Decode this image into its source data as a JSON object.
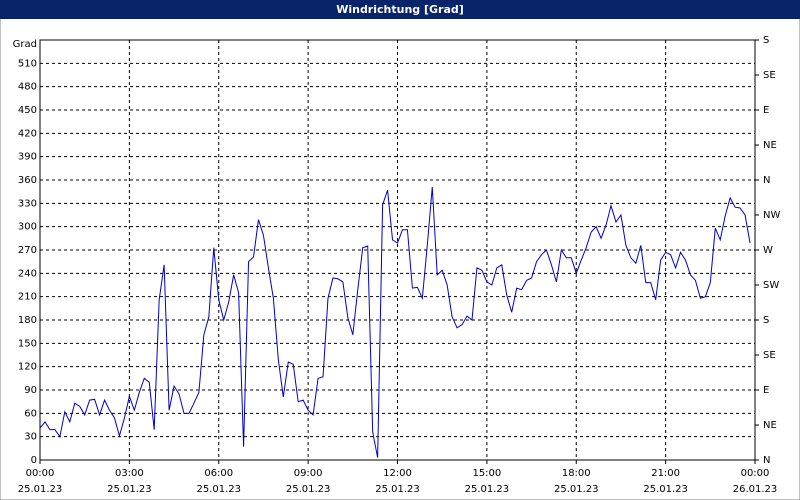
{
  "chart_data": {
    "type": "line",
    "title": "Windrichtung [Grad]",
    "y_label": "Grad",
    "grid": true,
    "color": "#0000cc",
    "xlim": [
      "2023-01-25T00:00",
      "2023-01-26T00:00"
    ],
    "xticks": [
      {
        "value": "2023-01-25T00:00",
        "label": "00:00",
        "date": "25.01.23"
      },
      {
        "value": "2023-01-25T03:00",
        "label": "03:00",
        "date": "25.01.23"
      },
      {
        "value": "2023-01-25T06:00",
        "label": "06:00",
        "date": "25.01.23"
      },
      {
        "value": "2023-01-25T09:00",
        "label": "09:00",
        "date": "25.01.23"
      },
      {
        "value": "2023-01-25T12:00",
        "label": "12:00",
        "date": "25.01.23"
      },
      {
        "value": "2023-01-25T15:00",
        "label": "15:00",
        "date": "25.01.23"
      },
      {
        "value": "2023-01-25T18:00",
        "label": "18:00",
        "date": "25.01.23"
      },
      {
        "value": "2023-01-25T21:00",
        "label": "21:00",
        "date": "25.01.23"
      },
      {
        "value": "2023-01-26T00:00",
        "label": "00:00",
        "date": "26.01.23"
      }
    ],
    "ylim": [
      0,
      540
    ],
    "yticks": [
      0,
      30,
      60,
      90,
      120,
      150,
      180,
      210,
      240,
      270,
      300,
      330,
      360,
      390,
      420,
      450,
      480,
      510
    ],
    "y2lim": [
      0,
      540
    ],
    "y2ticks": [
      {
        "value": 0,
        "label": "N"
      },
      {
        "value": 45,
        "label": "NE"
      },
      {
        "value": 90,
        "label": "E"
      },
      {
        "value": 135,
        "label": "SE"
      },
      {
        "value": 180,
        "label": "S"
      },
      {
        "value": 225,
        "label": "SW"
      },
      {
        "value": 270,
        "label": "W"
      },
      {
        "value": 315,
        "label": "NW"
      },
      {
        "value": 360,
        "label": "N"
      },
      {
        "value": 405,
        "label": "NE"
      },
      {
        "value": 450,
        "label": "E"
      },
      {
        "value": 495,
        "label": "SE"
      },
      {
        "value": 540,
        "label": "S"
      }
    ],
    "x": [
      "2023-01-25T00:00",
      "2023-01-25T00:10",
      "2023-01-25T00:20",
      "2023-01-25T00:30",
      "2023-01-25T00:40",
      "2023-01-25T00:50",
      "2023-01-25T01:00",
      "2023-01-25T01:10",
      "2023-01-25T01:20",
      "2023-01-25T01:30",
      "2023-01-25T01:40",
      "2023-01-25T01:50",
      "2023-01-25T02:00",
      "2023-01-25T02:10",
      "2023-01-25T02:20",
      "2023-01-25T02:30",
      "2023-01-25T02:40",
      "2023-01-25T02:50",
      "2023-01-25T03:00",
      "2023-01-25T03:10",
      "2023-01-25T03:20",
      "2023-01-25T03:30",
      "2023-01-25T03:40",
      "2023-01-25T03:50",
      "2023-01-25T04:00",
      "2023-01-25T04:10",
      "2023-01-25T04:20",
      "2023-01-25T04:30",
      "2023-01-25T04:40",
      "2023-01-25T04:50",
      "2023-01-25T05:00",
      "2023-01-25T05:10",
      "2023-01-25T05:20",
      "2023-01-25T05:30",
      "2023-01-25T05:40",
      "2023-01-25T05:50",
      "2023-01-25T06:00",
      "2023-01-25T06:10",
      "2023-01-25T06:20",
      "2023-01-25T06:30",
      "2023-01-25T06:40",
      "2023-01-25T06:50",
      "2023-01-25T07:00",
      "2023-01-25T07:10",
      "2023-01-25T07:20",
      "2023-01-25T07:30",
      "2023-01-25T07:40",
      "2023-01-25T07:50",
      "2023-01-25T08:00",
      "2023-01-25T08:10",
      "2023-01-25T08:20",
      "2023-01-25T08:30",
      "2023-01-25T08:40",
      "2023-01-25T08:50",
      "2023-01-25T09:00",
      "2023-01-25T09:10",
      "2023-01-25T09:20",
      "2023-01-25T09:30",
      "2023-01-25T09:40",
      "2023-01-25T09:50",
      "2023-01-25T10:00",
      "2023-01-25T10:10",
      "2023-01-25T10:20",
      "2023-01-25T10:30",
      "2023-01-25T10:40",
      "2023-01-25T10:50",
      "2023-01-25T11:00",
      "2023-01-25T11:10",
      "2023-01-25T11:20",
      "2023-01-25T11:30",
      "2023-01-25T11:40",
      "2023-01-25T11:50",
      "2023-01-25T12:00",
      "2023-01-25T12:10",
      "2023-01-25T12:20",
      "2023-01-25T12:30",
      "2023-01-25T12:40",
      "2023-01-25T12:50",
      "2023-01-25T13:00",
      "2023-01-25T13:10",
      "2023-01-25T13:20",
      "2023-01-25T13:30",
      "2023-01-25T13:40",
      "2023-01-25T13:50",
      "2023-01-25T14:00",
      "2023-01-25T14:10",
      "2023-01-25T14:20",
      "2023-01-25T14:30",
      "2023-01-25T14:40",
      "2023-01-25T14:50",
      "2023-01-25T15:00",
      "2023-01-25T15:10",
      "2023-01-25T15:20",
      "2023-01-25T15:30",
      "2023-01-25T15:40",
      "2023-01-25T15:50",
      "2023-01-25T16:00",
      "2023-01-25T16:10",
      "2023-01-25T16:20",
      "2023-01-25T16:30",
      "2023-01-25T16:40",
      "2023-01-25T16:50",
      "2023-01-25T17:00",
      "2023-01-25T17:10",
      "2023-01-25T17:20",
      "2023-01-25T17:30",
      "2023-01-25T17:40",
      "2023-01-25T17:50",
      "2023-01-25T18:00",
      "2023-01-25T18:10",
      "2023-01-25T18:20",
      "2023-01-25T18:30",
      "2023-01-25T18:40",
      "2023-01-25T18:50",
      "2023-01-25T19:00",
      "2023-01-25T19:10",
      "2023-01-25T19:20",
      "2023-01-25T19:30",
      "2023-01-25T19:40",
      "2023-01-25T19:50",
      "2023-01-25T20:00",
      "2023-01-25T20:10",
      "2023-01-25T20:20",
      "2023-01-25T20:30",
      "2023-01-25T20:40",
      "2023-01-25T20:50",
      "2023-01-25T21:00",
      "2023-01-25T21:10",
      "2023-01-25T21:20",
      "2023-01-25T21:30",
      "2023-01-25T21:40",
      "2023-01-25T21:50",
      "2023-01-25T22:00",
      "2023-01-25T22:10",
      "2023-01-25T22:20",
      "2023-01-25T22:30",
      "2023-01-25T22:40",
      "2023-01-25T22:50",
      "2023-01-25T23:00",
      "2023-01-25T23:10",
      "2023-01-25T23:20",
      "2023-01-25T23:30",
      "2023-01-25T23:40",
      "2023-01-25T23:50"
    ],
    "values": [
      41,
      49,
      39,
      39,
      30,
      62,
      49,
      73,
      69,
      58,
      77,
      78,
      58,
      77,
      64,
      54,
      31,
      54,
      82,
      64,
      87,
      105,
      100,
      39,
      206,
      251,
      64,
      95,
      85,
      60,
      60,
      73,
      87,
      161,
      184,
      273,
      206,
      180,
      203,
      238,
      215,
      17,
      255,
      261,
      309,
      289,
      247,
      208,
      129,
      81,
      126,
      123,
      75,
      77,
      64,
      58,
      105,
      107,
      208,
      234,
      233,
      229,
      183,
      161,
      219,
      273,
      275,
      36,
      3,
      328,
      347,
      283,
      279,
      296,
      296,
      221,
      222,
      208,
      276,
      351,
      238,
      244,
      225,
      184,
      170,
      174,
      185,
      180,
      247,
      244,
      229,
      225,
      247,
      251,
      212,
      190,
      221,
      219,
      231,
      234,
      255,
      264,
      270,
      251,
      229,
      270,
      260,
      260,
      240,
      257,
      273,
      293,
      300,
      285,
      302,
      327,
      306,
      315,
      276,
      260,
      253,
      276,
      228,
      228,
      206,
      257,
      267,
      264,
      247,
      267,
      257,
      238,
      231,
      208,
      210,
      228,
      298,
      283,
      314,
      337,
      325,
      324,
      315,
      279
    ]
  }
}
